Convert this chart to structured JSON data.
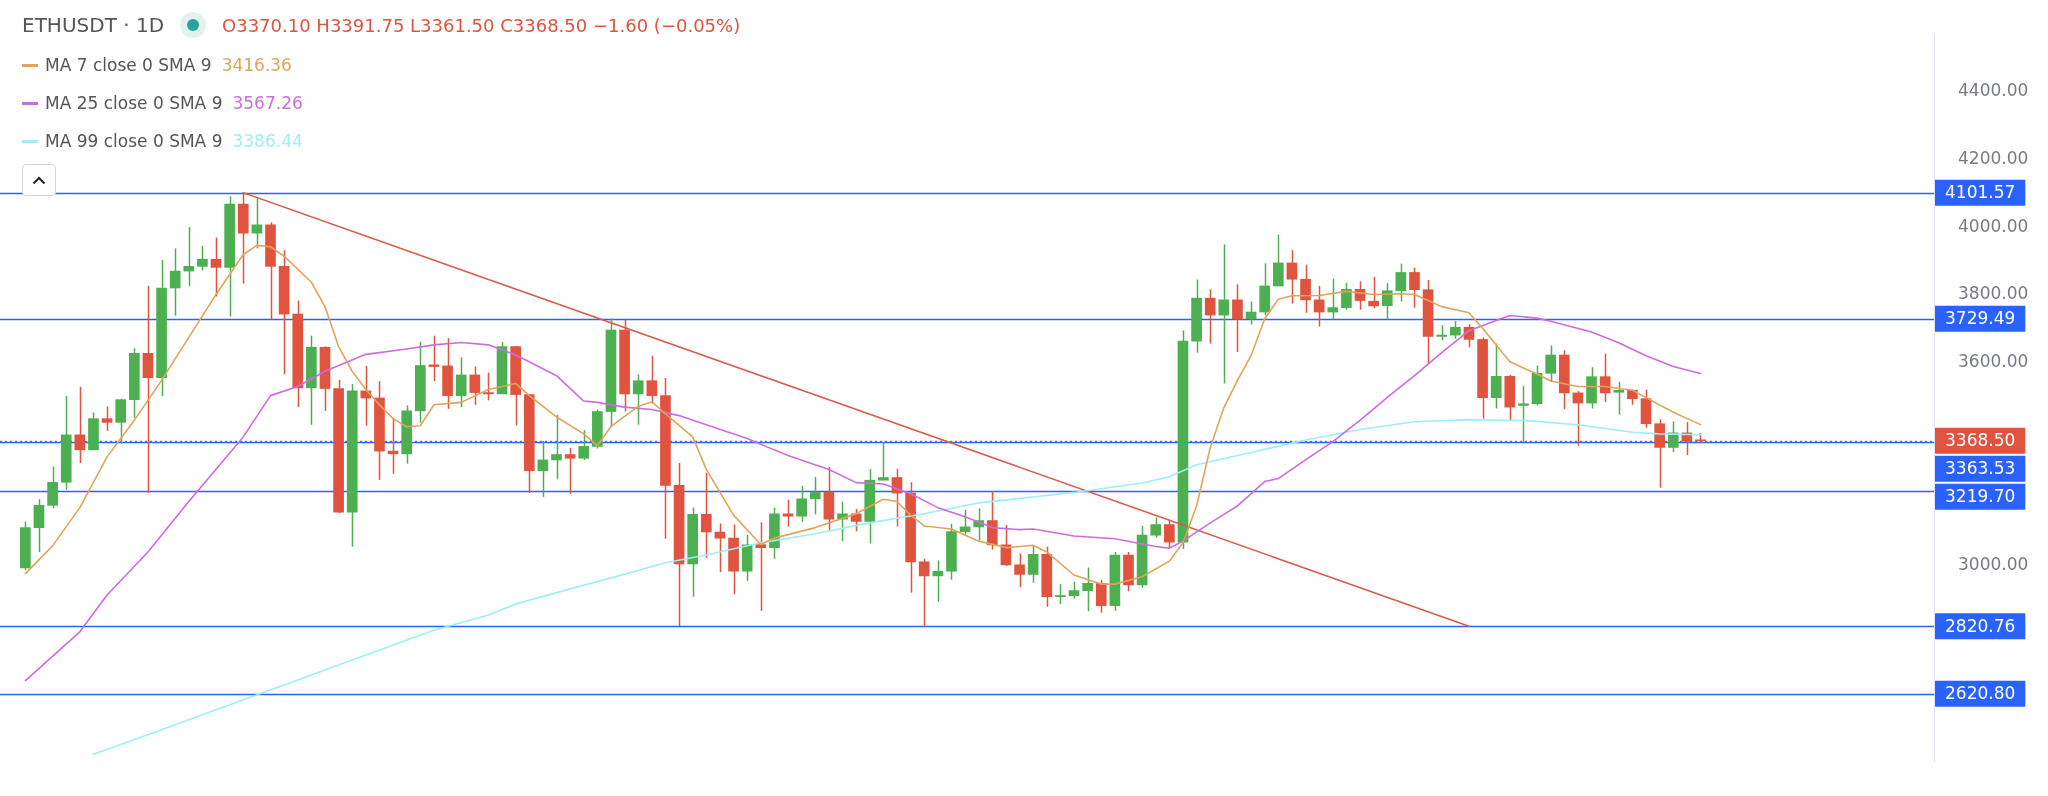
{
  "chart_data": {
    "type": "candlestick",
    "title": "ETHUSDT · 1D",
    "subtitle": "O3370.10 H3391.75 L3361.50 C3368.50 −1.60 (−0.05%)",
    "categories": [
      null,
      null,
      null,
      null,
      null,
      null,
      null,
      null,
      null,
      null,
      null,
      null,
      null,
      null,
      null,
      null,
      null,
      null,
      null,
      null,
      null,
      null,
      null,
      null,
      null,
      null,
      null,
      null,
      null,
      null,
      null,
      null,
      null,
      null,
      null,
      null,
      null,
      null,
      null,
      null,
      null,
      null,
      null,
      null,
      null,
      null,
      null,
      null,
      null,
      null,
      null,
      null,
      null,
      null,
      null,
      null,
      null,
      null,
      null,
      null,
      null,
      null,
      null,
      null,
      null,
      null,
      null,
      null,
      null,
      null,
      null,
      null,
      null,
      null,
      null,
      null,
      null,
      null,
      null,
      null,
      null,
      null,
      null,
      null,
      null,
      null,
      null,
      null,
      null,
      null,
      null,
      null,
      null,
      null,
      null,
      null,
      null,
      null,
      null,
      null,
      null,
      null,
      null,
      null,
      null,
      null,
      null,
      null,
      null,
      null,
      null,
      null,
      null,
      null,
      null,
      null,
      null,
      null,
      null,
      null,
      null,
      null,
      null,
      null
    ],
    "ohlc": [
      [
        2993,
        3130,
        2987,
        3112
      ],
      [
        3112,
        3196,
        3040,
        3178
      ],
      [
        3178,
        3292,
        3169,
        3246
      ],
      [
        3246,
        3501,
        3224,
        3386
      ],
      [
        3386,
        3528,
        3303,
        3342
      ],
      [
        3342,
        3452,
        3342,
        3434
      ],
      [
        3434,
        3470,
        3398,
        3423
      ],
      [
        3423,
        3493,
        3360,
        3490
      ],
      [
        3490,
        3642,
        3436,
        3627
      ],
      [
        3627,
        3826,
        3215,
        3555
      ],
      [
        3555,
        3903,
        3501,
        3820
      ],
      [
        3820,
        3937,
        3738,
        3870
      ],
      [
        3870,
        4000,
        3826,
        3884
      ],
      [
        3884,
        3945,
        3872,
        3905
      ],
      [
        3905,
        3969,
        3795,
        3881
      ],
      [
        3881,
        4091,
        3736,
        4068
      ],
      [
        4068,
        4101.57,
        3833,
        3982
      ],
      [
        3982,
        4084,
        3937,
        4007
      ],
      [
        4007,
        4014,
        3727,
        3884
      ],
      [
        3884,
        3932,
        3565,
        3743
      ],
      [
        3743,
        3783,
        3468,
        3525
      ],
      [
        3525,
        3679,
        3416,
        3645
      ],
      [
        3645,
        3647,
        3457,
        3523
      ],
      [
        3523,
        3549,
        3155,
        3158
      ],
      [
        3158,
        3536,
        3056,
        3516
      ],
      [
        3516,
        3590,
        3413,
        3495
      ],
      [
        3495,
        3545,
        3253,
        3338
      ],
      [
        3338,
        3436,
        3271,
        3330
      ],
      [
        3330,
        3473,
        3301,
        3457
      ],
      [
        3457,
        3661,
        3422,
        3591
      ],
      [
        3593,
        3679,
        3545,
        3588
      ],
      [
        3590,
        3672,
        3463,
        3502
      ],
      [
        3502,
        3615,
        3468,
        3563
      ],
      [
        3563,
        3588,
        3475,
        3511
      ],
      [
        3511,
        3570,
        3488,
        3507
      ],
      [
        3507,
        3660,
        3507,
        3647
      ],
      [
        3647,
        3649,
        3414,
        3505
      ],
      [
        3505,
        3505,
        3214,
        3280
      ],
      [
        3280,
        3368,
        3203,
        3312
      ],
      [
        3312,
        3445,
        3255,
        3328
      ],
      [
        3328,
        3348,
        3212,
        3317
      ],
      [
        3317,
        3400,
        3312,
        3352
      ],
      [
        3352,
        3461,
        3346,
        3455
      ],
      [
        3455,
        3729.49,
        3410,
        3696
      ],
      [
        3696,
        3727,
        3455,
        3507
      ],
      [
        3507,
        3565,
        3416,
        3546
      ],
      [
        3546,
        3620,
        3478,
        3502
      ],
      [
        3502,
        3554,
        3079,
        3237
      ],
      [
        3237,
        3303,
        2820.76,
        3005
      ],
      [
        3005,
        3171,
        2908,
        3151
      ],
      [
        3151,
        3274,
        3023,
        3099
      ],
      [
        3099,
        3124,
        2981,
        3081
      ],
      [
        3081,
        3121,
        2915,
        2983
      ],
      [
        2983,
        3091,
        2954,
        3061
      ],
      [
        3062,
        3128,
        2866,
        3053
      ],
      [
        3053,
        3171,
        3020,
        3153
      ],
      [
        3153,
        3194,
        3115,
        3146
      ],
      [
        3146,
        3235,
        3129,
        3197
      ],
      [
        3197,
        3262,
        3151,
        3216
      ],
      [
        3216,
        3291,
        3103,
        3137
      ],
      [
        3137,
        3189,
        3072,
        3153
      ],
      [
        3153,
        3167,
        3101,
        3130
      ],
      [
        3130,
        3285,
        3065,
        3252
      ],
      [
        3252,
        3363.53,
        3252,
        3260
      ],
      [
        3260,
        3286,
        3115,
        3214
      ],
      [
        3214,
        3246,
        2920,
        3011
      ],
      [
        3011,
        3020,
        2818,
        2969
      ],
      [
        2969,
        3015,
        2893,
        2983
      ],
      [
        2983,
        3123,
        2958,
        3100
      ],
      [
        3100,
        3165,
        3090,
        3114
      ],
      [
        3114,
        3169,
        3074,
        3133
      ],
      [
        3133,
        3219.7,
        3047,
        3061
      ],
      [
        3061,
        3120,
        2999,
        3002
      ],
      [
        3002,
        3035,
        2936,
        2974
      ],
      [
        2974,
        3060,
        2949,
        3033
      ],
      [
        3033,
        3056,
        2878,
        2908
      ],
      [
        2908,
        2945,
        2886,
        2911
      ],
      [
        2911,
        2952,
        2902,
        2926
      ],
      [
        2926,
        2994,
        2865,
        2947
      ],
      [
        2947,
        2958,
        2861,
        2881
      ],
      [
        2881,
        3040,
        2866,
        3031
      ],
      [
        3031,
        3040,
        2924,
        2943
      ],
      [
        2943,
        3117,
        2934,
        3090
      ],
      [
        3090,
        3142,
        3083,
        3121
      ],
      [
        3121,
        3135,
        3053,
        3069
      ],
      [
        3069,
        3695,
        3049,
        3663
      ],
      [
        3663,
        3845,
        3629,
        3790
      ],
      [
        3790,
        3816,
        3656,
        3740
      ],
      [
        3740,
        3949,
        3538,
        3785
      ],
      [
        3785,
        3831,
        3631,
        3729
      ],
      [
        3729,
        3780,
        3712,
        3749
      ],
      [
        3749,
        3893,
        3740,
        3826
      ],
      [
        3826,
        3978,
        3826,
        3894
      ],
      [
        3894,
        3932,
        3774,
        3846
      ],
      [
        3846,
        3889,
        3747,
        3785
      ],
      [
        3785,
        3826,
        3706,
        3749
      ],
      [
        3749,
        3848,
        3729,
        3762
      ],
      [
        3762,
        3835,
        3756,
        3816
      ],
      [
        3816,
        3840,
        3756,
        3783
      ],
      [
        3781,
        3853,
        3760,
        3767
      ],
      [
        3768,
        3835,
        3729,
        3812
      ],
      [
        3812,
        3892,
        3780,
        3866
      ],
      [
        3866,
        3880,
        3762,
        3815
      ],
      [
        3815,
        3844,
        3597,
        3677
      ],
      [
        3677,
        3710,
        3665,
        3681
      ],
      [
        3681,
        3722,
        3670,
        3704
      ],
      [
        3704,
        3713,
        3645,
        3668
      ],
      [
        3668,
        3674,
        3434,
        3496
      ],
      [
        3496,
        3656,
        3464,
        3559
      ],
      [
        3559,
        3563,
        3428,
        3468
      ],
      [
        3473,
        3531,
        3365,
        3478
      ],
      [
        3478,
        3591,
        3473,
        3568
      ],
      [
        3568,
        3650,
        3542,
        3622
      ],
      [
        3622,
        3636,
        3462,
        3510
      ],
      [
        3510,
        3515,
        3354,
        3480
      ],
      [
        3480,
        3586,
        3464,
        3558
      ],
      [
        3558,
        3626,
        3483,
        3510
      ],
      [
        3512,
        3543,
        3446,
        3518
      ],
      [
        3518,
        3520,
        3475,
        3493
      ],
      [
        3493,
        3520,
        3407,
        3419
      ],
      [
        3419,
        3432,
        3230,
        3349
      ],
      [
        3349,
        3426,
        3335,
        3392
      ],
      [
        3392,
        3424,
        3326,
        3367
      ],
      [
        3370.1,
        3391.75,
        3361.5,
        3368.5
      ]
    ],
    "colors": [
      "#4caf50",
      "#4caf50",
      "#4caf50",
      "#4caf50",
      "#e0533f",
      "#4caf50",
      "#e0533f",
      "#4caf50",
      "#4caf50",
      "#e0533f",
      "#4caf50",
      "#4caf50",
      "#4caf50",
      "#4caf50",
      "#e0533f",
      "#4caf50",
      "#e0533f",
      "#4caf50",
      "#e0533f",
      "#e0533f",
      "#e0533f",
      "#4caf50",
      "#e0533f",
      "#e0533f",
      "#4caf50",
      "#e0533f",
      "#e0533f",
      "#e0533f",
      "#4caf50",
      "#4caf50",
      "#e0533f",
      "#e0533f",
      "#4caf50",
      "#e0533f",
      "#e0533f",
      "#4caf50",
      "#e0533f",
      "#e0533f",
      "#4caf50",
      "#4caf50",
      "#e0533f",
      "#4caf50",
      "#4caf50",
      "#4caf50",
      "#e0533f",
      "#4caf50",
      "#e0533f",
      "#e0533f",
      "#e0533f",
      "#4caf50",
      "#e0533f",
      "#e0533f",
      "#e0533f",
      "#4caf50",
      "#e0533f",
      "#4caf50",
      "#e0533f",
      "#4caf50",
      "#4caf50",
      "#e0533f",
      "#4caf50",
      "#e0533f",
      "#4caf50",
      "#4caf50",
      "#e0533f",
      "#e0533f",
      "#e0533f",
      "#4caf50",
      "#4caf50",
      "#4caf50",
      "#4caf50",
      "#e0533f",
      "#e0533f",
      "#e0533f",
      "#4caf50",
      "#e0533f",
      "#4caf50",
      "#4caf50",
      "#4caf50",
      "#e0533f",
      "#4caf50",
      "#e0533f",
      "#4caf50",
      "#4caf50",
      "#e0533f",
      "#4caf50",
      "#4caf50",
      "#e0533f",
      "#4caf50",
      "#e0533f",
      "#4caf50",
      "#4caf50",
      "#4caf50",
      "#e0533f",
      "#e0533f",
      "#e0533f",
      "#4caf50",
      "#4caf50",
      "#e0533f",
      "#e0533f",
      "#4caf50",
      "#4caf50",
      "#e0533f",
      "#e0533f",
      "#4caf50",
      "#4caf50",
      "#e0533f",
      "#e0533f",
      "#4caf50",
      "#e0533f",
      "#4caf50",
      "#4caf50",
      "#4caf50",
      "#e0533f",
      "#e0533f",
      "#4caf50",
      "#e0533f",
      "#4caf50",
      "#e0533f",
      "#e0533f",
      "#e0533f",
      "#4caf50",
      "#e0533f",
      "#e0533f"
    ],
    "series": [
      {
        "type": "line",
        "name": "MA 7 close 0 SMA 9",
        "color": "#e2a45a",
        "values": [
          2976,
          null,
          3058,
          null,
          3171,
          null,
          3321,
          null,
          3429,
          null,
          3547,
          null,
          3674,
          null,
          3801,
          null,
          3919,
          3946,
          3942,
          3914,
          null,
          3837,
          3765,
          3647,
          3574,
          3520,
          3475,
          3434,
          3410,
          3413,
          3475,
          null,
          3482,
          null,
          3520,
          null,
          3538,
          3502,
          null,
          3439,
          null,
          3389,
          3354,
          3411,
          null,
          3470,
          3484,
          3448,
          null,
          3380,
          3284,
          null,
          3149,
          null,
          3062,
          3081,
          null,
          null,
          3112,
          null,
          null,
          3153,
          null,
          3196,
          3189,
          3149,
          3117,
          null,
          3108,
          null,
          3072,
          null,
          3053,
          3056,
          3060,
          3040,
          null,
          2972,
          null,
          2945,
          2945,
          null,
          2967,
          null,
          3013,
          3067,
          3176,
          3348,
          3466,
          3547,
          3620,
          3729,
          3787,
          3797,
          null,
          3798,
          null,
          3810,
          null,
          3801,
          null,
          3803,
          3801,
          3783,
          3765,
          null,
          3747,
          3701,
          null,
          3602,
          null,
          3566,
          3545,
          null,
          3529,
          null,
          3529,
          null,
          3518,
          3496,
          null,
          3453,
          null,
          3416.36
        ]
      },
      {
        "type": "line",
        "name": "MA 25 close 0 SMA 9",
        "color": "#cf6be0",
        "values": [
          2660,
          null,
          null,
          null,
          2804,
          null,
          2913,
          null,
          null,
          3040,
          null,
          null,
          3189,
          null,
          null,
          null,
          3380,
          null,
          3502,
          null,
          3529,
          null,
          3574,
          null,
          null,
          3624,
          null,
          null,
          3640,
          null,
          3652,
          null,
          3659,
          null,
          3652,
          null,
          3622,
          3602,
          null,
          3561,
          null,
          3486,
          3482,
          null,
          3468,
          null,
          3461,
          null,
          3443,
          null,
          3416,
          null,
          null,
          3375,
          null,
          null,
          3325,
          null,
          null,
          3284,
          null,
          3245,
          null,
          3241,
          null,
          3212,
          null,
          3171,
          null,
          3144,
          null,
          3112,
          null,
          3106,
          3108,
          null,
          null,
          3087,
          null,
          null,
          3079,
          null,
          null,
          3056,
          3051,
          3072,
          null,
          3126,
          null,
          3176,
          null,
          3248,
          3257,
          null,
          3312,
          null,
          3366,
          null,
          3429,
          null,
          3497,
          null,
          3561,
          null,
          3629,
          null,
          3694,
          null,
          3724,
          3739,
          null,
          3731,
          3722,
          null,
          null,
          3690,
          null,
          3658,
          null,
          3620,
          null,
          3588,
          null,
          3567.26
        ]
      },
      {
        "type": "line",
        "name": "MA 99 close 0 SMA 9",
        "color": "#9deff4",
        "values": [
          null,
          null,
          null,
          null,
          null,
          2442,
          null,
          null,
          null,
          2500,
          null,
          null,
          null,
          null,
          2574,
          null,
          null,
          null,
          null,
          2647,
          null,
          null,
          null,
          null,
          2721,
          null,
          null,
          null,
          null,
          null,
          2809,
          null,
          null,
          null,
          2854,
          null,
          2886,
          null,
          null,
          null,
          2931,
          null,
          null,
          null,
          2974,
          null,
          null,
          3008,
          null,
          null,
          3031,
          null,
          null,
          null,
          3067,
          null,
          null,
          null,
          3094,
          null,
          null,
          null,
          3126,
          null,
          null,
          null,
          3153,
          null,
          null,
          null,
          3185,
          null,
          null,
          3198,
          null,
          null,
          null,
          3216,
          null,
          null,
          null,
          null,
          3244,
          null,
          3262,
          null,
          3298,
          null,
          null,
          null,
          3334,
          null,
          null,
          null,
          3371,
          null,
          null,
          null,
          3402,
          null,
          null,
          null,
          3425,
          null,
          null,
          null,
          3431,
          null,
          null,
          3428,
          3429,
          null,
          null,
          null,
          3416,
          null,
          null,
          null,
          3394,
          null,
          3389,
          null,
          null,
          3386.44
        ]
      },
      {
        "type": "line",
        "color": "#d95c4e",
        "values": [
          null,
          null,
          null,
          null,
          null,
          null,
          null,
          null,
          null,
          null,
          null,
          null,
          null,
          null,
          null,
          null,
          4101.57,
          null,
          null,
          null,
          null,
          null,
          null,
          null,
          null,
          null,
          null,
          null,
          null,
          null,
          null,
          null,
          null,
          null,
          null,
          null,
          null,
          null,
          null,
          null,
          null,
          null,
          null,
          null,
          null,
          null,
          null,
          null,
          null,
          null,
          null,
          null,
          null,
          null,
          null,
          null,
          null,
          null,
          null,
          null,
          null,
          null,
          null,
          null,
          null,
          null,
          null,
          null,
          null,
          null,
          null,
          null,
          null,
          null,
          null,
          null,
          null,
          null,
          null,
          null,
          null,
          null,
          null,
          null,
          null,
          null,
          null,
          null,
          null,
          null,
          null,
          null,
          null,
          null,
          null,
          null,
          null,
          null,
          null,
          null,
          null,
          null,
          null,
          null,
          null,
          null,
          2820.76,
          null,
          null,
          null,
          null,
          null,
          null,
          null,
          null,
          null,
          null,
          null,
          null,
          null,
          null,
          null,
          null,
          null
        ]
      }
    ],
    "ylim": [
      2420,
      4570
    ],
    "yticks": [
      {
        "value": 3000,
        "label": "3000.00"
      },
      {
        "value": 3600,
        "label": "3600.00"
      },
      {
        "value": 3800,
        "label": "3800.00"
      },
      {
        "value": 4000,
        "label": "4000.00"
      },
      {
        "value": 4200,
        "label": "4200.00"
      },
      {
        "value": 4400,
        "label": "4400.00"
      }
    ],
    "ref_lines": [
      {
        "axis": "y",
        "value": 4101.57,
        "label": "4101.57",
        "color": "#2962ff"
      },
      {
        "axis": "y",
        "value": 3729.49,
        "label": "3729.49",
        "color": "#2962ff"
      },
      {
        "axis": "y",
        "value": 3368.5,
        "label": "3368.50",
        "color": "#e0533f",
        "line_style": "dotted"
      },
      {
        "axis": "y",
        "value": 3363.53,
        "label": "3363.53",
        "color": "#2962ff"
      },
      {
        "axis": "y",
        "value": 3219.7,
        "label": "3219.70",
        "color": "#2962ff"
      },
      {
        "axis": "y",
        "value": 2820.76,
        "label": "2820.76",
        "color": "#2962ff"
      },
      {
        "axis": "y",
        "value": 2620.8,
        "label": "2620.80",
        "color": "#2962ff"
      }
    ],
    "annotations": [
      "3416.36",
      "3567.26",
      "3386.44"
    ],
    "tick_labels": "y",
    "legend": "top left"
  }
}
